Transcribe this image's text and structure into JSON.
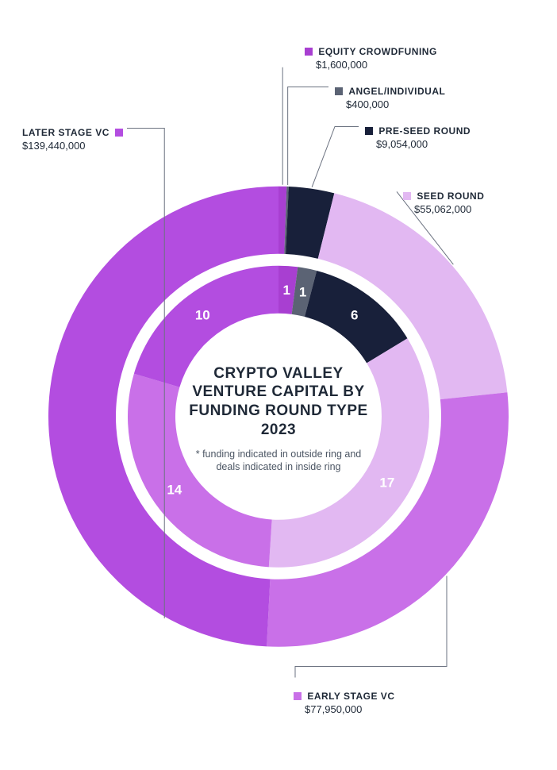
{
  "chart": {
    "type": "donut-double-ring",
    "center_title": "CRYPTO VALLEY VENTURE CAPITAL BY FUNDING ROUND TYPE 2023",
    "center_note": "* funding indicated in outside ring and deals indicated in inside ring",
    "title_fontsize": 19,
    "note_fontsize": 12.5,
    "title_color": "#1f2937",
    "background_color": "#ffffff",
    "outer_ring": {
      "outer_radius": 290,
      "inner_radius": 205,
      "description": "funding amount"
    },
    "inner_ring": {
      "outer_radius": 190,
      "inner_radius": 130,
      "description": "deal count"
    },
    "slices": [
      {
        "name": "EQUITY CROWDFUNING",
        "funding": 1600000,
        "funding_label": "$1,600,000",
        "deals": 1,
        "color": "#a83fd1"
      },
      {
        "name": "ANGEL/INDIVIDUAL",
        "funding": 400000,
        "funding_label": "$400,000",
        "deals": 1,
        "color": "#5b6374"
      },
      {
        "name": "PRE-SEED ROUND",
        "funding": 9054000,
        "funding_label": "$9,054,000",
        "deals": 6,
        "color": "#18203a"
      },
      {
        "name": "SEED ROUND",
        "funding": 55062000,
        "funding_label": "$55,062,000",
        "deals": 17,
        "color": "#e2b8f2"
      },
      {
        "name": "EARLY STAGE VC",
        "funding": 77950000,
        "funding_label": "$77,950,000",
        "deals": 14,
        "color": "#c970e8"
      },
      {
        "name": "LATER STAGE VC",
        "funding": 139440000,
        "funding_label": "$139,440,000",
        "deals": 10,
        "color": "#b34de0"
      }
    ],
    "leader_color": "#6b7280",
    "leader_width": 1,
    "label_fontsize": 12,
    "deal_number_fontsize": 17,
    "deal_number_color": "#ffffff",
    "start_angle_deg": -90
  }
}
